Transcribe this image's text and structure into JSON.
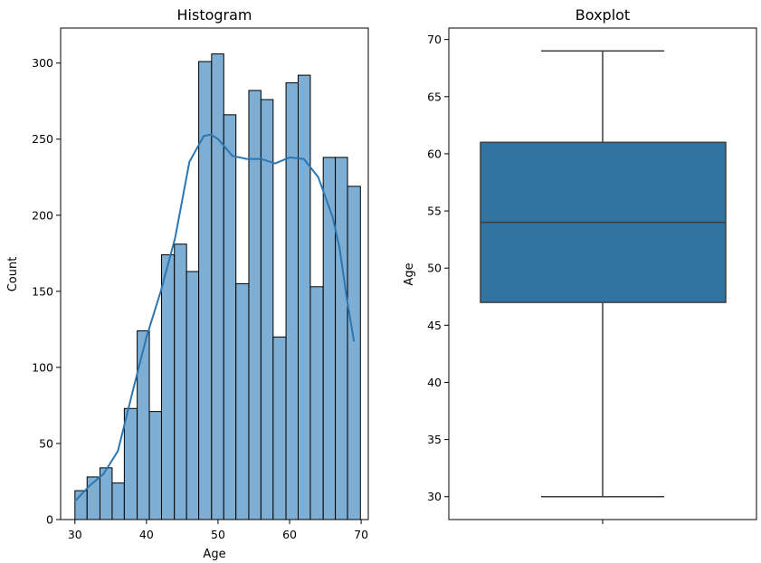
{
  "chart_data": [
    {
      "type": "bar",
      "subtype": "histogram_with_kde",
      "title": "Histogram",
      "xlabel": "Age",
      "ylabel": "Count",
      "xlim": [
        28,
        71
      ],
      "ylim": [
        0,
        323
      ],
      "xticks": [
        30,
        40,
        50,
        60,
        70
      ],
      "yticks": [
        0,
        50,
        100,
        150,
        200,
        250,
        300
      ],
      "bin_edges": [
        30,
        31.7,
        33.5,
        35.2,
        36.9,
        38.7,
        40.4,
        42.1,
        43.9,
        45.6,
        47.3,
        49.1,
        50.8,
        52.5,
        54.3,
        56.0,
        57.7,
        59.5,
        61.2,
        62.9,
        64.7,
        66.4,
        68.1,
        69.9
      ],
      "values": [
        19,
        28,
        34,
        24,
        73,
        124,
        71,
        174,
        181,
        163,
        301,
        306,
        266,
        155,
        282,
        276,
        120,
        287,
        292,
        153,
        238,
        238,
        219
      ],
      "kde": {
        "x": [
          30,
          32,
          34,
          36,
          38,
          40,
          42,
          44,
          46,
          48,
          49,
          50,
          52,
          54,
          56,
          58,
          60,
          62,
          64,
          66,
          67,
          68,
          69
        ],
        "y": [
          12,
          22,
          30,
          45,
          83,
          120,
          150,
          185,
          235,
          252,
          253,
          250,
          239,
          237,
          237,
          234,
          238,
          237,
          225,
          199,
          178,
          145,
          117
        ]
      },
      "bar_color": "#7eaed3",
      "line_color": "#2c76b2",
      "grid": false
    },
    {
      "type": "box",
      "title": "Boxplot",
      "xlabel": "",
      "ylabel": "Age",
      "ylim": [
        28,
        71
      ],
      "yticks": [
        30,
        35,
        40,
        45,
        50,
        55,
        60,
        65,
        70
      ],
      "stats": {
        "min": 30,
        "q1": 47,
        "median": 54,
        "q3": 61,
        "max": 69
      },
      "box_color": "#3274a1",
      "grid": false
    }
  ]
}
